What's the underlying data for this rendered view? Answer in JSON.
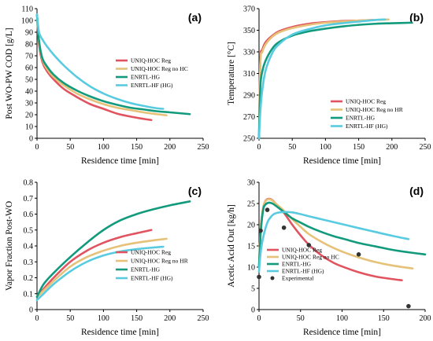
{
  "colors": {
    "uniq_hoc_reg": "#e0535f",
    "uniq_hoc_reg_no_hc": "#e6c178",
    "enrtl_hg": "#129a7c",
    "enrtl_hf_hg": "#59cbe0",
    "experimental": "#333333"
  },
  "chart_data": [
    {
      "id": "a",
      "type": "line",
      "panel_label": "(a)",
      "xlabel": "Residence time [min]",
      "ylabel": "Post WO-PW COD [g/L]",
      "xlim": [
        0,
        250
      ],
      "ylim": [
        0,
        110
      ],
      "xticks": [
        0,
        50,
        100,
        150,
        200,
        250
      ],
      "yticks": [
        0,
        10,
        20,
        30,
        40,
        50,
        60,
        70,
        80,
        90,
        100,
        110
      ],
      "legend_position": "center-right",
      "series": [
        {
          "name": "UNIQ-HOC Reg",
          "color_key": "uniq_hoc_reg",
          "x": [
            0,
            3,
            8,
            15,
            25,
            40,
            60,
            80,
            100,
            120,
            140,
            160,
            172
          ],
          "y": [
            105,
            80,
            65,
            57,
            50,
            42,
            35,
            29,
            25,
            21,
            18.5,
            16.5,
            15.5
          ]
        },
        {
          "name": "UNIQ-HOC Reg no HC",
          "color_key": "uniq_hoc_reg_no_hc",
          "x": [
            0,
            3,
            8,
            15,
            25,
            40,
            60,
            80,
            100,
            120,
            140,
            160,
            180,
            195
          ],
          "y": [
            105,
            82,
            67,
            59,
            52,
            45,
            38,
            33,
            29,
            26,
            24,
            22,
            20.5,
            19.5
          ]
        },
        {
          "name": "ENRTL-HG",
          "color_key": "enrtl_hg",
          "x": [
            0,
            3,
            8,
            15,
            25,
            40,
            60,
            80,
            100,
            120,
            140,
            160,
            180,
            200,
            230
          ],
          "y": [
            105,
            83,
            68,
            61,
            54,
            47,
            40.5,
            35.5,
            31.5,
            28.5,
            26,
            24.5,
            23,
            22,
            20.5
          ]
        },
        {
          "name": "ENRTL-HF (HG)",
          "color_key": "enrtl_hf_hg",
          "x": [
            0,
            3,
            8,
            15,
            25,
            40,
            60,
            80,
            100,
            120,
            140,
            160,
            180,
            190
          ],
          "y": [
            105,
            90,
            84,
            78,
            71,
            62,
            52,
            44,
            38,
            33.5,
            30,
            27.5,
            25.5,
            25
          ]
        }
      ]
    },
    {
      "id": "b",
      "type": "line",
      "panel_label": "(b)",
      "xlabel": "Residence time [min]",
      "ylabel": "Temperature [°C]",
      "xlim": [
        0,
        250
      ],
      "ylim": [
        250,
        370
      ],
      "xticks": [
        0,
        50,
        100,
        150,
        200,
        250
      ],
      "yticks": [
        250,
        270,
        290,
        310,
        330,
        350,
        370
      ],
      "legend_position": "center-right",
      "series": [
        {
          "name": "UNIQ-HOC Reg",
          "color_key": "uniq_hoc_reg",
          "x": [
            0,
            2,
            5,
            10,
            20,
            30,
            50,
            75,
            100,
            125,
            150,
            172
          ],
          "y": [
            250,
            322,
            332,
            339,
            345,
            349,
            353,
            356,
            357.5,
            358.5,
            359,
            359.5
          ]
        },
        {
          "name": "UNIQ-HOC Reg no HR",
          "color_key": "uniq_hoc_reg_no_hc",
          "x": [
            0,
            2,
            5,
            10,
            20,
            30,
            50,
            75,
            100,
            125,
            150,
            175,
            195
          ],
          "y": [
            250,
            320,
            330,
            337,
            344,
            348,
            352,
            355,
            357,
            358,
            359,
            359.5,
            360
          ]
        },
        {
          "name": "ENRTL-HG",
          "color_key": "enrtl_hg",
          "x": [
            0,
            2,
            5,
            10,
            20,
            30,
            50,
            75,
            100,
            125,
            150,
            175,
            200,
            230
          ],
          "y": [
            250,
            298,
            312,
            322,
            333,
            339,
            345,
            349,
            351.5,
            353.5,
            355,
            356,
            356.5,
            357
          ]
        },
        {
          "name": "ENRTL-HF (HG)",
          "color_key": "enrtl_hf_hg",
          "x": [
            0,
            2,
            5,
            10,
            20,
            30,
            50,
            75,
            100,
            125,
            150,
            175,
            190
          ],
          "y": [
            250,
            275,
            295,
            313,
            329,
            337,
            346,
            351,
            354.5,
            356.5,
            358,
            359.5,
            360
          ]
        }
      ]
    },
    {
      "id": "c",
      "type": "line",
      "panel_label": "(c)",
      "xlabel": "Residence time [min]",
      "ylabel": "Vapor Fraction Post-WO",
      "xlim": [
        0,
        250
      ],
      "ylim": [
        0,
        0.8
      ],
      "xticks": [
        0,
        50,
        100,
        150,
        200,
        250
      ],
      "yticks": [
        0,
        0.1,
        0.2,
        0.3,
        0.4,
        0.5,
        0.6,
        0.7,
        0.8
      ],
      "legend_position": "right",
      "series": [
        {
          "name": "UNIQ-HOC Reg",
          "color_key": "uniq_hoc_reg",
          "x": [
            0,
            10,
            25,
            50,
            75,
            100,
            125,
            150,
            172
          ],
          "y": [
            0.08,
            0.13,
            0.2,
            0.3,
            0.37,
            0.42,
            0.455,
            0.48,
            0.5
          ]
        },
        {
          "name": "UNIQ-HOC Reg no HR",
          "color_key": "uniq_hoc_reg_no_hc",
          "x": [
            0,
            10,
            25,
            50,
            75,
            100,
            125,
            150,
            175,
            195
          ],
          "y": [
            0.08,
            0.12,
            0.18,
            0.27,
            0.33,
            0.37,
            0.4,
            0.42,
            0.435,
            0.445
          ]
        },
        {
          "name": "ENRTL-HG",
          "color_key": "enrtl_hg",
          "x": [
            0,
            10,
            25,
            50,
            75,
            100,
            125,
            150,
            175,
            200,
            230
          ],
          "y": [
            0.08,
            0.16,
            0.23,
            0.33,
            0.42,
            0.5,
            0.56,
            0.6,
            0.63,
            0.655,
            0.68
          ]
        },
        {
          "name": "ENRTL-HF (HG)",
          "color_key": "enrtl_hf_hg",
          "x": [
            0,
            10,
            25,
            50,
            75,
            100,
            125,
            150,
            175,
            190
          ],
          "y": [
            0.06,
            0.1,
            0.16,
            0.24,
            0.3,
            0.34,
            0.365,
            0.38,
            0.39,
            0.395
          ]
        }
      ]
    },
    {
      "id": "d",
      "type": "line",
      "panel_label": "(d)",
      "xlabel": "Residence time [min]",
      "ylabel": "Acetic Acid Out [kg/h]",
      "xlim": [
        0,
        200
      ],
      "ylim": [
        0,
        30
      ],
      "xticks": [
        0,
        50,
        100,
        150,
        200
      ],
      "yticks": [
        0,
        5,
        10,
        15,
        20,
        25,
        30
      ],
      "legend_position": "bottom-left",
      "series": [
        {
          "name": "UNIQ-HOC Reg",
          "color_key": "uniq_hoc_reg",
          "x": [
            0,
            2,
            5,
            8,
            12,
            16,
            20,
            30,
            40,
            50,
            60,
            75,
            90,
            105,
            120,
            140,
            160,
            172
          ],
          "y": [
            10,
            19,
            24,
            25.7,
            26.1,
            25.8,
            25,
            22.8,
            20,
            17.5,
            15.3,
            12.8,
            11,
            9.8,
            8.8,
            7.8,
            7.2,
            6.9
          ]
        },
        {
          "name": "UNIQ-HOC Reg no HC",
          "color_key": "uniq_hoc_reg_no_hc",
          "x": [
            0,
            2,
            5,
            8,
            12,
            16,
            20,
            30,
            40,
            50,
            60,
            75,
            90,
            105,
            120,
            140,
            160,
            185
          ],
          "y": [
            10,
            19,
            24,
            25.6,
            26,
            25.7,
            25,
            23.3,
            21.3,
            19.5,
            17.8,
            16,
            14.5,
            13.3,
            12.3,
            11.2,
            10.4,
            9.7
          ]
        },
        {
          "name": "ENRTL-HG",
          "color_key": "enrtl_hg",
          "x": [
            0,
            2,
            5,
            8,
            12,
            16,
            20,
            30,
            40,
            50,
            60,
            75,
            90,
            105,
            120,
            140,
            160,
            180,
            200
          ],
          "y": [
            10,
            18,
            23.5,
            24.8,
            25.2,
            25,
            24.5,
            23,
            21.5,
            20.5,
            19.5,
            18.3,
            17.3,
            16.5,
            15.7,
            14.9,
            14.1,
            13.5,
            13
          ]
        },
        {
          "name": "ENRTL-HF (HG)",
          "color_key": "enrtl_hf_hg",
          "x": [
            0,
            2,
            5,
            10,
            15,
            20,
            30,
            40,
            50,
            60,
            75,
            90,
            105,
            120,
            140,
            160,
            180
          ],
          "y": [
            9,
            13.5,
            17,
            20.5,
            22,
            22.7,
            23,
            22.9,
            22.5,
            22,
            21.3,
            20.6,
            19.9,
            19.2,
            18.3,
            17.4,
            16.6
          ]
        },
        {
          "name": "Experimental",
          "color_key": "experimental",
          "marker": "point",
          "x": [
            0,
            2,
            10,
            30,
            60,
            120,
            180
          ],
          "y": [
            7.7,
            18.6,
            23.5,
            19.3,
            15.2,
            13,
            0.8
          ]
        }
      ]
    }
  ]
}
